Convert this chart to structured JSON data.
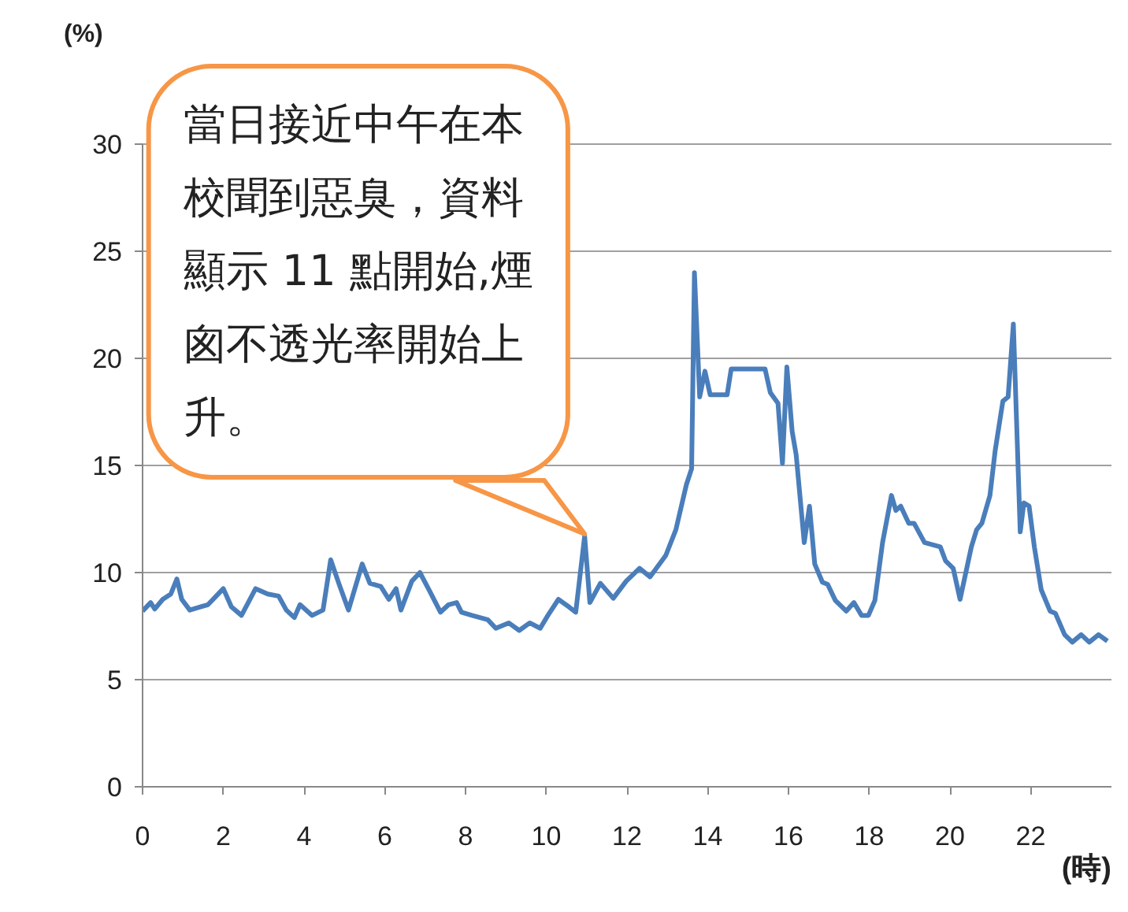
{
  "chart_data": {
    "type": "line",
    "ylabel": "(%)",
    "xlabel": "(時)",
    "x": [
      0,
      0.2,
      0.3,
      0.5,
      0.7,
      0.85,
      0.97,
      1.17,
      1.43,
      1.62,
      2.0,
      2.2,
      2.45,
      2.8,
      3.1,
      3.37,
      3.56,
      3.76,
      3.9,
      4.2,
      4.47,
      4.66,
      4.86,
      5.1,
      5.44,
      5.63,
      5.9,
      6.1,
      6.28,
      6.4,
      6.67,
      6.87,
      7.12,
      7.38,
      7.58,
      7.78,
      7.9,
      8.16,
      8.55,
      8.75,
      9.07,
      9.33,
      9.59,
      9.85,
      10.04,
      10.3,
      10.56,
      10.73,
      10.95,
      11.08,
      11.34,
      11.66,
      11.98,
      12.31,
      12.57,
      12.96,
      13.21,
      13.47,
      13.6,
      13.67,
      13.8,
      13.93,
      14.06,
      14.48,
      14.58,
      15.42,
      15.55,
      15.74,
      15.85,
      15.96,
      16.09,
      16.19,
      16.39,
      16.52,
      16.65,
      16.84,
      16.97,
      17.16,
      17.43,
      17.62,
      17.81,
      17.98,
      18.14,
      18.33,
      18.55,
      18.66,
      18.78,
      18.98,
      19.11,
      19.37,
      19.76,
      19.89,
      20.08,
      20.25,
      20.53,
      20.66,
      20.79,
      20.99,
      21.12,
      21.31,
      21.44,
      21.57,
      21.74,
      21.83,
      21.96,
      22.09,
      22.26,
      22.48,
      22.61,
      22.84,
      23.03,
      23.25,
      23.45,
      23.68,
      23.9
    ],
    "series": [
      {
        "color": "#4a7ebb",
        "values": [
          8.2,
          8.6,
          8.3,
          8.75,
          9.0,
          9.7,
          8.75,
          8.25,
          8.4,
          8.5,
          9.25,
          8.4,
          8.0,
          9.25,
          9.0,
          8.9,
          8.25,
          7.9,
          8.5,
          8.0,
          8.25,
          10.6,
          9.5,
          8.25,
          10.4,
          9.5,
          9.35,
          8.75,
          9.25,
          8.25,
          9.6,
          10.0,
          9.1,
          8.15,
          8.5,
          8.6,
          8.15,
          8.0,
          7.8,
          7.4,
          7.65,
          7.3,
          7.65,
          7.4,
          8.0,
          8.75,
          8.4,
          8.15,
          11.7,
          8.6,
          9.5,
          8.8,
          9.6,
          10.2,
          9.8,
          10.8,
          12.0,
          14.1,
          14.85,
          24.0,
          18.2,
          19.4,
          18.3,
          18.3,
          19.5,
          19.5,
          18.4,
          17.9,
          15.1,
          19.6,
          16.6,
          15.5,
          11.4,
          13.1,
          10.4,
          9.55,
          9.45,
          8.7,
          8.2,
          8.6,
          8.0,
          8.0,
          8.7,
          11.4,
          13.6,
          12.9,
          13.1,
          12.3,
          12.3,
          11.4,
          11.2,
          10.55,
          10.2,
          8.75,
          11.2,
          12.0,
          12.3,
          13.6,
          15.7,
          18.0,
          18.2,
          21.6,
          11.9,
          13.25,
          13.1,
          11.2,
          9.2,
          8.2,
          8.1,
          7.1,
          6.75,
          7.1,
          6.75,
          7.1,
          6.8
        ]
      }
    ],
    "xlim": [
      0,
      24
    ],
    "ylim": [
      0,
      30
    ],
    "xticks": [
      0,
      2,
      4,
      6,
      8,
      10,
      12,
      14,
      16,
      18,
      20,
      22
    ],
    "yticks": [
      0,
      5,
      10,
      15,
      20,
      25,
      30
    ],
    "grid": "y",
    "line_style": "solid",
    "annotations": [
      {
        "text": "當日接近中午在本校聞到惡臭，資料顯示 11 點開始,煙囪不透光率開始上升。",
        "x": 10.95,
        "y": 11.7
      }
    ]
  }
}
